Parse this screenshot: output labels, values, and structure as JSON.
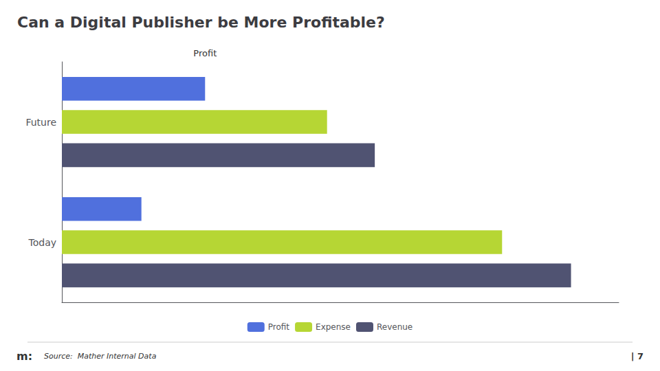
{
  "chart_data": {
    "type": "bar",
    "orientation": "horizontal",
    "title": "Can a Digital Publisher be More Profitable?",
    "categories": [
      "Future",
      "Today"
    ],
    "series": [
      {
        "name": "Profit",
        "values": [
          27,
          15
        ]
      },
      {
        "name": "Expense",
        "values": [
          50,
          83
        ]
      },
      {
        "name": "Revenue",
        "values": [
          59,
          96
        ]
      }
    ],
    "xlim": [
      0,
      105
    ],
    "tick_labels": "y",
    "grid": false,
    "legend": "bottom",
    "annotations": [
      {
        "text": "Profit",
        "x": 27
      },
      {
        "text": "m:"
      },
      {
        "text": "Source:  Mather Internal Data"
      },
      {
        "text": "| 7"
      }
    ]
  }
}
